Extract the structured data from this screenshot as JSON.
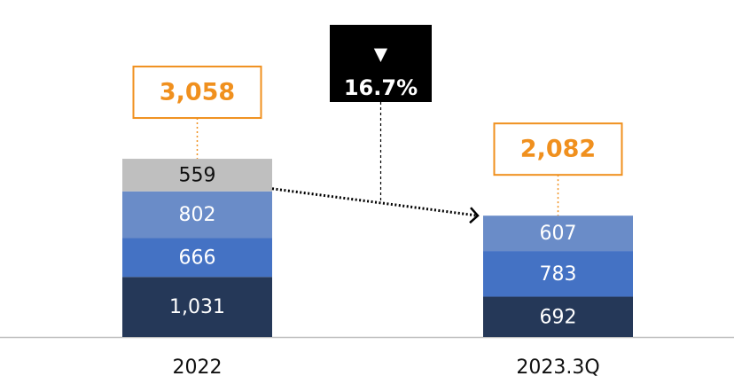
{
  "chart_data": {
    "type": "stacked_bar",
    "categories": [
      "2022",
      "2023.3Q"
    ],
    "series": [
      {
        "color": "#253858",
        "values": [
          1031,
          692
        ],
        "value_labels": [
          "1,031",
          "692"
        ]
      },
      {
        "color": "#4472c4",
        "values": [
          666,
          783
        ]
      },
      {
        "color": "#6a8cc8",
        "values": [
          802,
          607
        ]
      },
      {
        "color": "#bfbfbf",
        "values": [
          559,
          null
        ]
      }
    ],
    "totals": [
      3058,
      2082
    ],
    "totals_labels": [
      "3,058",
      "2,082"
    ],
    "totals_color": "#f0901e",
    "change_annotation": {
      "marker": "▼",
      "text": "16.7%"
    },
    "ylim": [
      0,
      3500
    ]
  }
}
